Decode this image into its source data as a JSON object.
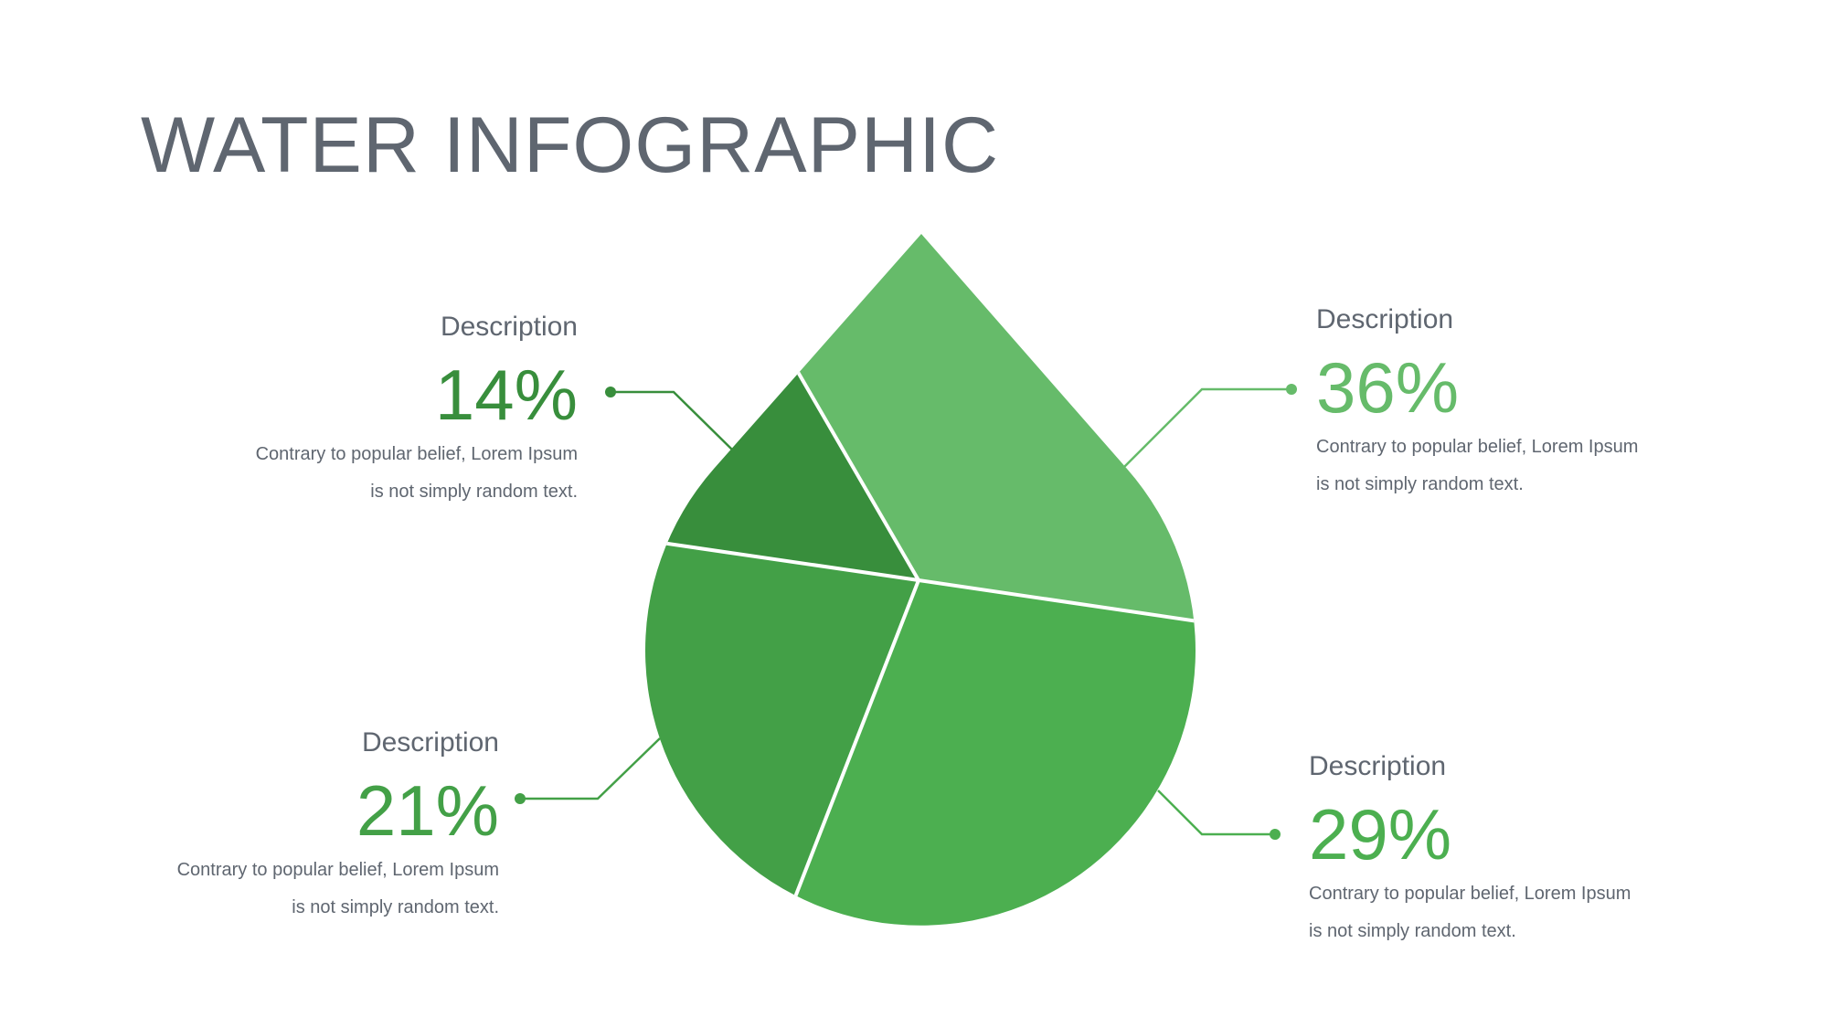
{
  "title": "WATER INFOGRAPHIC",
  "chart_data": {
    "type": "pie",
    "shape": "water-drop",
    "slices": [
      {
        "label": "Description",
        "value": 36,
        "display": "36%",
        "color": "#66BB6A",
        "text": [
          "Contrary to popular belief, Lorem Ipsum",
          "is not simply random text."
        ]
      },
      {
        "label": "Description",
        "value": 29,
        "display": "29%",
        "color": "#4CAF50",
        "text": [
          "Contrary to popular belief, Lorem Ipsum",
          "is not simply random text."
        ]
      },
      {
        "label": "Description",
        "value": 21,
        "display": "21%",
        "color": "#43A047",
        "text": [
          "Contrary to popular belief, Lorem Ipsum",
          "is not simply random text."
        ]
      },
      {
        "label": "Description",
        "value": 14,
        "display": "14%",
        "color": "#388E3C",
        "text": [
          "Contrary to popular belief, Lorem Ipsum",
          "is not simply random text."
        ]
      }
    ]
  }
}
